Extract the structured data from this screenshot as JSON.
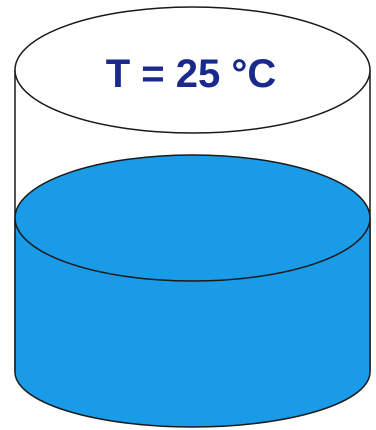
{
  "label": {
    "temperature": "T = 25 °C"
  },
  "colors": {
    "water": "#1a9be8",
    "outline": "#1a1a1a",
    "label_text": "#1a2a8c"
  }
}
